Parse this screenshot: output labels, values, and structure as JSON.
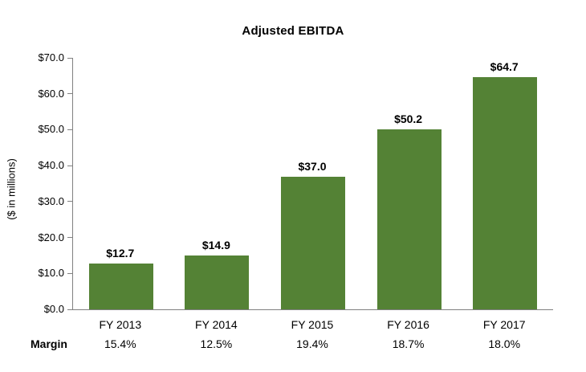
{
  "chart_data": {
    "type": "bar",
    "title": "Adjusted EBITDA",
    "xlabel": "",
    "ylabel": "($ in millions)",
    "categories": [
      "FY 2013",
      "FY 2014",
      "FY 2015",
      "FY 2016",
      "FY 2017"
    ],
    "values": [
      12.7,
      14.9,
      37.0,
      50.2,
      64.7
    ],
    "value_labels": [
      "$12.7",
      "$14.9",
      "$37.0",
      "$50.2",
      "$64.7"
    ],
    "margin_row": {
      "label": "Margin",
      "values": [
        "15.4%",
        "12.5%",
        "19.4%",
        "18.7%",
        "18.0%"
      ]
    },
    "ylim": [
      0,
      70
    ],
    "y_ticks": [
      {
        "value": 0,
        "label": "$0.0"
      },
      {
        "value": 10,
        "label": "$10.0"
      },
      {
        "value": 20,
        "label": "$20.0"
      },
      {
        "value": 30,
        "label": "$30.0"
      },
      {
        "value": 40,
        "label": "$40.0"
      },
      {
        "value": 50,
        "label": "$50.0"
      },
      {
        "value": 60,
        "label": "$60.0"
      },
      {
        "value": 70,
        "label": "$70.0"
      }
    ],
    "grid": false,
    "legend": false,
    "colors": {
      "bar": "#548235",
      "axis": "#808080",
      "text": "#000000",
      "background": "#ffffff"
    }
  }
}
